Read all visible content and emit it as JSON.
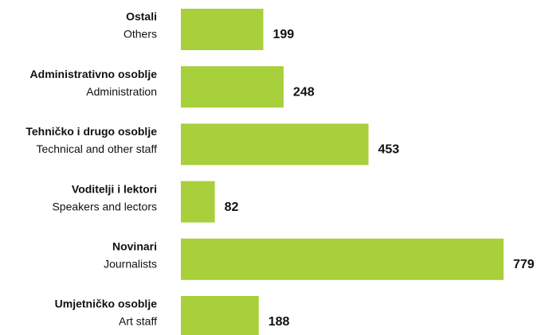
{
  "chart_data": {
    "type": "hbar",
    "categories": [
      "Ostali",
      "Administrativno osoblje",
      "Tehničko i drugo osoblje",
      "Voditelji i lektori",
      "Novinari",
      "Umjetničko osoblje"
    ],
    "category_translations": [
      "Others",
      "Administration",
      "Technical and other staff",
      "Speakers and lectors",
      "Journalists",
      "Art staff"
    ],
    "values": [
      199,
      248,
      453,
      82,
      779,
      188
    ],
    "color": "#a8cf3c"
  }
}
